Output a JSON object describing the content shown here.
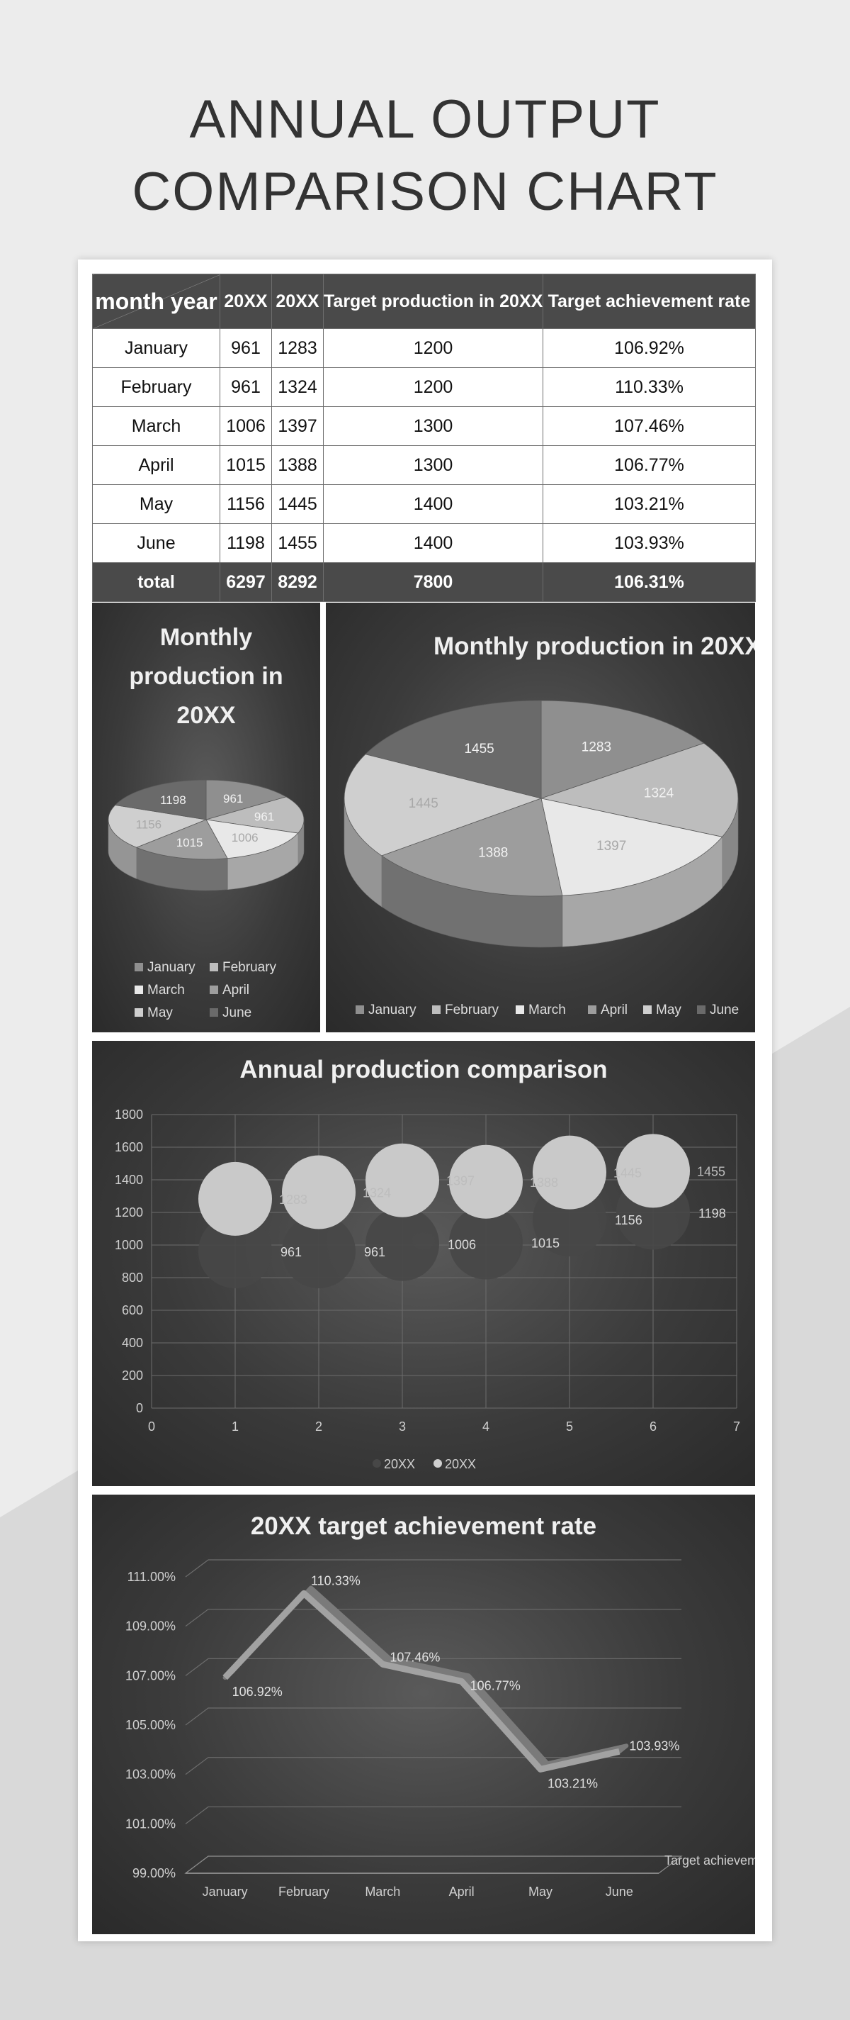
{
  "title_lines": [
    "ANNUAL OUTPUT",
    "COMPARISON CHART"
  ],
  "colors": {
    "background": "#ececec",
    "panel": "#3b3b3b",
    "header": "#4a4a4a",
    "slices": [
      "#8f8f8f",
      "#bdbdbd",
      "#e8e8e8",
      "#9d9d9d",
      "#cfcfcf",
      "#6a6a6a"
    ]
  },
  "table": {
    "header": [
      "month year",
      "20XX",
      "20XX",
      "Target production in 20XX",
      "Target achievement rate"
    ],
    "rows": [
      [
        "January",
        "961",
        "1283",
        "1200",
        "106.92%"
      ],
      [
        "February",
        "961",
        "1324",
        "1200",
        "110.33%"
      ],
      [
        "March",
        "1006",
        "1397",
        "1300",
        "107.46%"
      ],
      [
        "April",
        "1015",
        "1388",
        "1300",
        "106.77%"
      ],
      [
        "May",
        "1156",
        "1445",
        "1400",
        "103.21%"
      ],
      [
        "June",
        "1198",
        "1455",
        "1400",
        "103.93%"
      ]
    ],
    "total": [
      "total",
      "6297",
      "8292",
      "7800",
      "106.31%"
    ]
  },
  "chart_data": [
    {
      "type": "pie",
      "title": "Monthly production in 20XX",
      "categories": [
        "January",
        "February",
        "March",
        "April",
        "May",
        "June"
      ],
      "values": [
        961,
        961,
        1006,
        1015,
        1156,
        1198
      ],
      "legend": "bottom"
    },
    {
      "type": "pie",
      "title": "Monthly production in 20XX",
      "categories": [
        "January",
        "February",
        "March",
        "April",
        "May",
        "June"
      ],
      "values": [
        1283,
        1324,
        1397,
        1388,
        1445,
        1455
      ],
      "legend": "bottom"
    },
    {
      "type": "scatter",
      "title": "Annual production comparison",
      "x": [
        1,
        2,
        3,
        4,
        5,
        6
      ],
      "series": [
        {
          "name": "20XX",
          "values": [
            961,
            961,
            1006,
            1015,
            1156,
            1198
          ]
        },
        {
          "name": "20XX",
          "values": [
            1283,
            1324,
            1397,
            1388,
            1445,
            1455
          ]
        }
      ],
      "xlim": [
        0,
        7
      ],
      "xticks": [
        "0",
        "1",
        "2",
        "3",
        "4",
        "5",
        "6",
        "7"
      ],
      "ylim": [
        0,
        1800
      ],
      "yticks": [
        "0",
        "200",
        "400",
        "600",
        "800",
        "1000",
        "1200",
        "1400",
        "1600",
        "1800"
      ],
      "grid": true,
      "legend": "bottom"
    },
    {
      "type": "line",
      "title": "20XX target achievement rate",
      "categories": [
        "January",
        "February",
        "March",
        "April",
        "May",
        "June"
      ],
      "series": [
        {
          "name": "Target achievement rate",
          "values": [
            106.92,
            110.33,
            107.46,
            106.77,
            103.21,
            103.93
          ]
        }
      ],
      "data_labels": [
        "106.92%",
        "110.33%",
        "107.46%",
        "106.77%",
        "103.21%",
        "103.93%"
      ],
      "ylim": [
        99,
        111
      ],
      "yticks": [
        "99.00%",
        "101.00%",
        "103.00%",
        "105.00%",
        "107.00%",
        "109.00%",
        "111.00%"
      ],
      "grid": true
    }
  ]
}
